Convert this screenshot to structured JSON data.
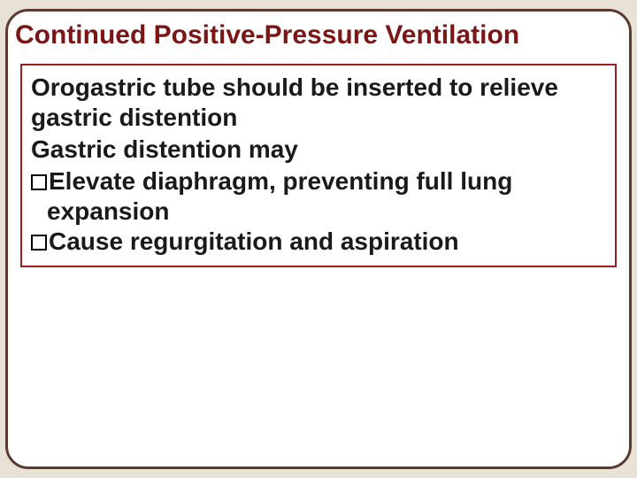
{
  "slide": {
    "title": "Continued Positive-Pressure Ventilation",
    "background_color": "#e8e2d6",
    "frame_border_color": "#5b3b30",
    "frame_border_radius": 26,
    "title_color": "#7a1616",
    "title_fontsize": 30,
    "content_box_border_color": "#9a2020",
    "body_fontsize": 28,
    "body_color": "#1a1a1a",
    "paragraphs": [
      "Orogastric tube should be inserted to relieve gastric distention",
      "Gastric distention may"
    ],
    "bullets": [
      "Elevate diaphragm, preventing full lung expansion",
      "Cause regurgitation and aspiration"
    ]
  }
}
